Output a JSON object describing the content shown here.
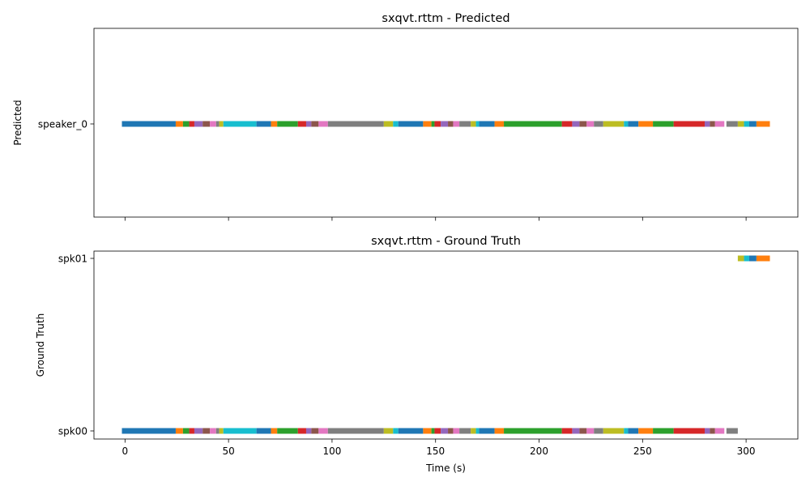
{
  "chart_data": [
    {
      "type": "timeline",
      "title": "sxqvt.rttm - Predicted",
      "ylabel": "Predicted",
      "xlabel": "",
      "xlim": [
        -15,
        325
      ],
      "xticks": [
        0,
        50,
        100,
        150,
        200,
        250,
        300
      ],
      "show_xtick_labels": false,
      "categories": [
        "speaker_0"
      ],
      "segments": [
        {
          "speaker": "speaker_0",
          "start": -1.5,
          "end": 24.5,
          "color": "#1f77b4"
        },
        {
          "speaker": "speaker_0",
          "start": 24.5,
          "end": 28,
          "color": "#ff7f0e"
        },
        {
          "speaker": "speaker_0",
          "start": 28,
          "end": 31,
          "color": "#2ca02c"
        },
        {
          "speaker": "speaker_0",
          "start": 31,
          "end": 33.5,
          "color": "#d62728"
        },
        {
          "speaker": "speaker_0",
          "start": 33.5,
          "end": 37.5,
          "color": "#9467bd"
        },
        {
          "speaker": "speaker_0",
          "start": 37.5,
          "end": 41,
          "color": "#8c564b"
        },
        {
          "speaker": "speaker_0",
          "start": 41,
          "end": 44,
          "color": "#e377c2"
        },
        {
          "speaker": "speaker_0",
          "start": 44,
          "end": 45.5,
          "color": "#7f7f7f"
        },
        {
          "speaker": "speaker_0",
          "start": 45.5,
          "end": 47.5,
          "color": "#bcbd22"
        },
        {
          "speaker": "speaker_0",
          "start": 47.5,
          "end": 63.5,
          "color": "#17becf"
        },
        {
          "speaker": "speaker_0",
          "start": 63.5,
          "end": 70.5,
          "color": "#1f77b4"
        },
        {
          "speaker": "speaker_0",
          "start": 70.5,
          "end": 73.5,
          "color": "#ff7f0e"
        },
        {
          "speaker": "speaker_0",
          "start": 73.5,
          "end": 83.5,
          "color": "#2ca02c"
        },
        {
          "speaker": "speaker_0",
          "start": 83.5,
          "end": 87.5,
          "color": "#d62728"
        },
        {
          "speaker": "speaker_0",
          "start": 87.5,
          "end": 90,
          "color": "#9467bd"
        },
        {
          "speaker": "speaker_0",
          "start": 90,
          "end": 93.5,
          "color": "#8c564b"
        },
        {
          "speaker": "speaker_0",
          "start": 93.5,
          "end": 98,
          "color": "#e377c2"
        },
        {
          "speaker": "speaker_0",
          "start": 98,
          "end": 125,
          "color": "#7f7f7f"
        },
        {
          "speaker": "speaker_0",
          "start": 125,
          "end": 129.5,
          "color": "#bcbd22"
        },
        {
          "speaker": "speaker_0",
          "start": 129.5,
          "end": 132,
          "color": "#17becf"
        },
        {
          "speaker": "speaker_0",
          "start": 132,
          "end": 144,
          "color": "#1f77b4"
        },
        {
          "speaker": "speaker_0",
          "start": 144,
          "end": 148,
          "color": "#ff7f0e"
        },
        {
          "speaker": "speaker_0",
          "start": 148,
          "end": 149.5,
          "color": "#2ca02c"
        },
        {
          "speaker": "speaker_0",
          "start": 149.5,
          "end": 152.5,
          "color": "#d62728"
        },
        {
          "speaker": "speaker_0",
          "start": 152.5,
          "end": 156,
          "color": "#9467bd"
        },
        {
          "speaker": "speaker_0",
          "start": 156,
          "end": 158.5,
          "color": "#8c564b"
        },
        {
          "speaker": "speaker_0",
          "start": 158.5,
          "end": 161.5,
          "color": "#e377c2"
        },
        {
          "speaker": "speaker_0",
          "start": 161.5,
          "end": 167,
          "color": "#7f7f7f"
        },
        {
          "speaker": "speaker_0",
          "start": 167,
          "end": 169.5,
          "color": "#bcbd22"
        },
        {
          "speaker": "speaker_0",
          "start": 169.5,
          "end": 171,
          "color": "#17becf"
        },
        {
          "speaker": "speaker_0",
          "start": 171,
          "end": 178.5,
          "color": "#1f77b4"
        },
        {
          "speaker": "speaker_0",
          "start": 178.5,
          "end": 183,
          "color": "#ff7f0e"
        },
        {
          "speaker": "speaker_0",
          "start": 183,
          "end": 211,
          "color": "#2ca02c"
        },
        {
          "speaker": "speaker_0",
          "start": 211,
          "end": 216,
          "color": "#d62728"
        },
        {
          "speaker": "speaker_0",
          "start": 216,
          "end": 219.5,
          "color": "#9467bd"
        },
        {
          "speaker": "speaker_0",
          "start": 219.5,
          "end": 223,
          "color": "#8c564b"
        },
        {
          "speaker": "speaker_0",
          "start": 223,
          "end": 226.5,
          "color": "#e377c2"
        },
        {
          "speaker": "speaker_0",
          "start": 226.5,
          "end": 231,
          "color": "#7f7f7f"
        },
        {
          "speaker": "speaker_0",
          "start": 231,
          "end": 241,
          "color": "#bcbd22"
        },
        {
          "speaker": "speaker_0",
          "start": 241,
          "end": 243,
          "color": "#17becf"
        },
        {
          "speaker": "speaker_0",
          "start": 243,
          "end": 248,
          "color": "#1f77b4"
        },
        {
          "speaker": "speaker_0",
          "start": 248,
          "end": 255,
          "color": "#ff7f0e"
        },
        {
          "speaker": "speaker_0",
          "start": 255,
          "end": 265,
          "color": "#2ca02c"
        },
        {
          "speaker": "speaker_0",
          "start": 265,
          "end": 280,
          "color": "#d62728"
        },
        {
          "speaker": "speaker_0",
          "start": 280,
          "end": 282.5,
          "color": "#9467bd"
        },
        {
          "speaker": "speaker_0",
          "start": 282.5,
          "end": 285,
          "color": "#8c564b"
        },
        {
          "speaker": "speaker_0",
          "start": 285,
          "end": 289.5,
          "color": "#e377c2"
        },
        {
          "speaker": "speaker_0",
          "start": 290.5,
          "end": 296,
          "color": "#7f7f7f"
        },
        {
          "speaker": "speaker_0",
          "start": 296,
          "end": 299,
          "color": "#bcbd22"
        },
        {
          "speaker": "speaker_0",
          "start": 299,
          "end": 301.5,
          "color": "#17becf"
        },
        {
          "speaker": "speaker_0",
          "start": 301.5,
          "end": 305,
          "color": "#1f77b4"
        },
        {
          "speaker": "speaker_0",
          "start": 305,
          "end": 311.5,
          "color": "#ff7f0e"
        }
      ]
    },
    {
      "type": "timeline",
      "title": "sxqvt.rttm - Ground Truth",
      "ylabel": "Ground Truth",
      "xlabel": "Time (s)",
      "xlim": [
        -15,
        325
      ],
      "xticks": [
        0,
        50,
        100,
        150,
        200,
        250,
        300
      ],
      "show_xtick_labels": true,
      "categories": [
        "spk00",
        "spk01"
      ],
      "segments": [
        {
          "speaker": "spk00",
          "start": -1.5,
          "end": 24.5,
          "color": "#1f77b4"
        },
        {
          "speaker": "spk00",
          "start": 24.5,
          "end": 28,
          "color": "#ff7f0e"
        },
        {
          "speaker": "spk00",
          "start": 28,
          "end": 31,
          "color": "#2ca02c"
        },
        {
          "speaker": "spk00",
          "start": 31,
          "end": 33.5,
          "color": "#d62728"
        },
        {
          "speaker": "spk00",
          "start": 33.5,
          "end": 37.5,
          "color": "#9467bd"
        },
        {
          "speaker": "spk00",
          "start": 37.5,
          "end": 41,
          "color": "#8c564b"
        },
        {
          "speaker": "spk00",
          "start": 41,
          "end": 44,
          "color": "#e377c2"
        },
        {
          "speaker": "spk00",
          "start": 44,
          "end": 45.5,
          "color": "#7f7f7f"
        },
        {
          "speaker": "spk00",
          "start": 45.5,
          "end": 47.5,
          "color": "#bcbd22"
        },
        {
          "speaker": "spk00",
          "start": 47.5,
          "end": 63.5,
          "color": "#17becf"
        },
        {
          "speaker": "spk00",
          "start": 63.5,
          "end": 70.5,
          "color": "#1f77b4"
        },
        {
          "speaker": "spk00",
          "start": 70.5,
          "end": 73.5,
          "color": "#ff7f0e"
        },
        {
          "speaker": "spk00",
          "start": 73.5,
          "end": 83.5,
          "color": "#2ca02c"
        },
        {
          "speaker": "spk00",
          "start": 83.5,
          "end": 87.5,
          "color": "#d62728"
        },
        {
          "speaker": "spk00",
          "start": 87.5,
          "end": 90,
          "color": "#9467bd"
        },
        {
          "speaker": "spk00",
          "start": 90,
          "end": 93.5,
          "color": "#8c564b"
        },
        {
          "speaker": "spk00",
          "start": 93.5,
          "end": 98,
          "color": "#e377c2"
        },
        {
          "speaker": "spk00",
          "start": 98,
          "end": 125,
          "color": "#7f7f7f"
        },
        {
          "speaker": "spk00",
          "start": 125,
          "end": 129.5,
          "color": "#bcbd22"
        },
        {
          "speaker": "spk00",
          "start": 129.5,
          "end": 132,
          "color": "#17becf"
        },
        {
          "speaker": "spk00",
          "start": 132,
          "end": 144,
          "color": "#1f77b4"
        },
        {
          "speaker": "spk00",
          "start": 144,
          "end": 148,
          "color": "#ff7f0e"
        },
        {
          "speaker": "spk00",
          "start": 148,
          "end": 149.5,
          "color": "#2ca02c"
        },
        {
          "speaker": "spk00",
          "start": 149.5,
          "end": 152.5,
          "color": "#d62728"
        },
        {
          "speaker": "spk00",
          "start": 152.5,
          "end": 156,
          "color": "#9467bd"
        },
        {
          "speaker": "spk00",
          "start": 156,
          "end": 158.5,
          "color": "#8c564b"
        },
        {
          "speaker": "spk00",
          "start": 158.5,
          "end": 161.5,
          "color": "#e377c2"
        },
        {
          "speaker": "spk00",
          "start": 161.5,
          "end": 167,
          "color": "#7f7f7f"
        },
        {
          "speaker": "spk00",
          "start": 167,
          "end": 169.5,
          "color": "#bcbd22"
        },
        {
          "speaker": "spk00",
          "start": 169.5,
          "end": 171,
          "color": "#17becf"
        },
        {
          "speaker": "spk00",
          "start": 171,
          "end": 178.5,
          "color": "#1f77b4"
        },
        {
          "speaker": "spk00",
          "start": 178.5,
          "end": 183,
          "color": "#ff7f0e"
        },
        {
          "speaker": "spk00",
          "start": 183,
          "end": 211,
          "color": "#2ca02c"
        },
        {
          "speaker": "spk00",
          "start": 211,
          "end": 216,
          "color": "#d62728"
        },
        {
          "speaker": "spk00",
          "start": 216,
          "end": 219.5,
          "color": "#9467bd"
        },
        {
          "speaker": "spk00",
          "start": 219.5,
          "end": 223,
          "color": "#8c564b"
        },
        {
          "speaker": "spk00",
          "start": 223,
          "end": 226.5,
          "color": "#e377c2"
        },
        {
          "speaker": "spk00",
          "start": 226.5,
          "end": 231,
          "color": "#7f7f7f"
        },
        {
          "speaker": "spk00",
          "start": 231,
          "end": 241,
          "color": "#bcbd22"
        },
        {
          "speaker": "spk00",
          "start": 241,
          "end": 243,
          "color": "#17becf"
        },
        {
          "speaker": "spk00",
          "start": 243,
          "end": 248,
          "color": "#1f77b4"
        },
        {
          "speaker": "spk00",
          "start": 248,
          "end": 255,
          "color": "#ff7f0e"
        },
        {
          "speaker": "spk00",
          "start": 255,
          "end": 265,
          "color": "#2ca02c"
        },
        {
          "speaker": "spk00",
          "start": 265,
          "end": 280,
          "color": "#d62728"
        },
        {
          "speaker": "spk00",
          "start": 280,
          "end": 282.5,
          "color": "#9467bd"
        },
        {
          "speaker": "spk00",
          "start": 282.5,
          "end": 285,
          "color": "#8c564b"
        },
        {
          "speaker": "spk00",
          "start": 285,
          "end": 289.5,
          "color": "#e377c2"
        },
        {
          "speaker": "spk00",
          "start": 290.5,
          "end": 296,
          "color": "#7f7f7f"
        },
        {
          "speaker": "spk01",
          "start": 296,
          "end": 299,
          "color": "#bcbd22"
        },
        {
          "speaker": "spk01",
          "start": 299,
          "end": 301.5,
          "color": "#17becf"
        },
        {
          "speaker": "spk01",
          "start": 301.5,
          "end": 305,
          "color": "#1f77b4"
        },
        {
          "speaker": "spk01",
          "start": 305,
          "end": 311.5,
          "color": "#ff7f0e"
        }
      ]
    }
  ]
}
